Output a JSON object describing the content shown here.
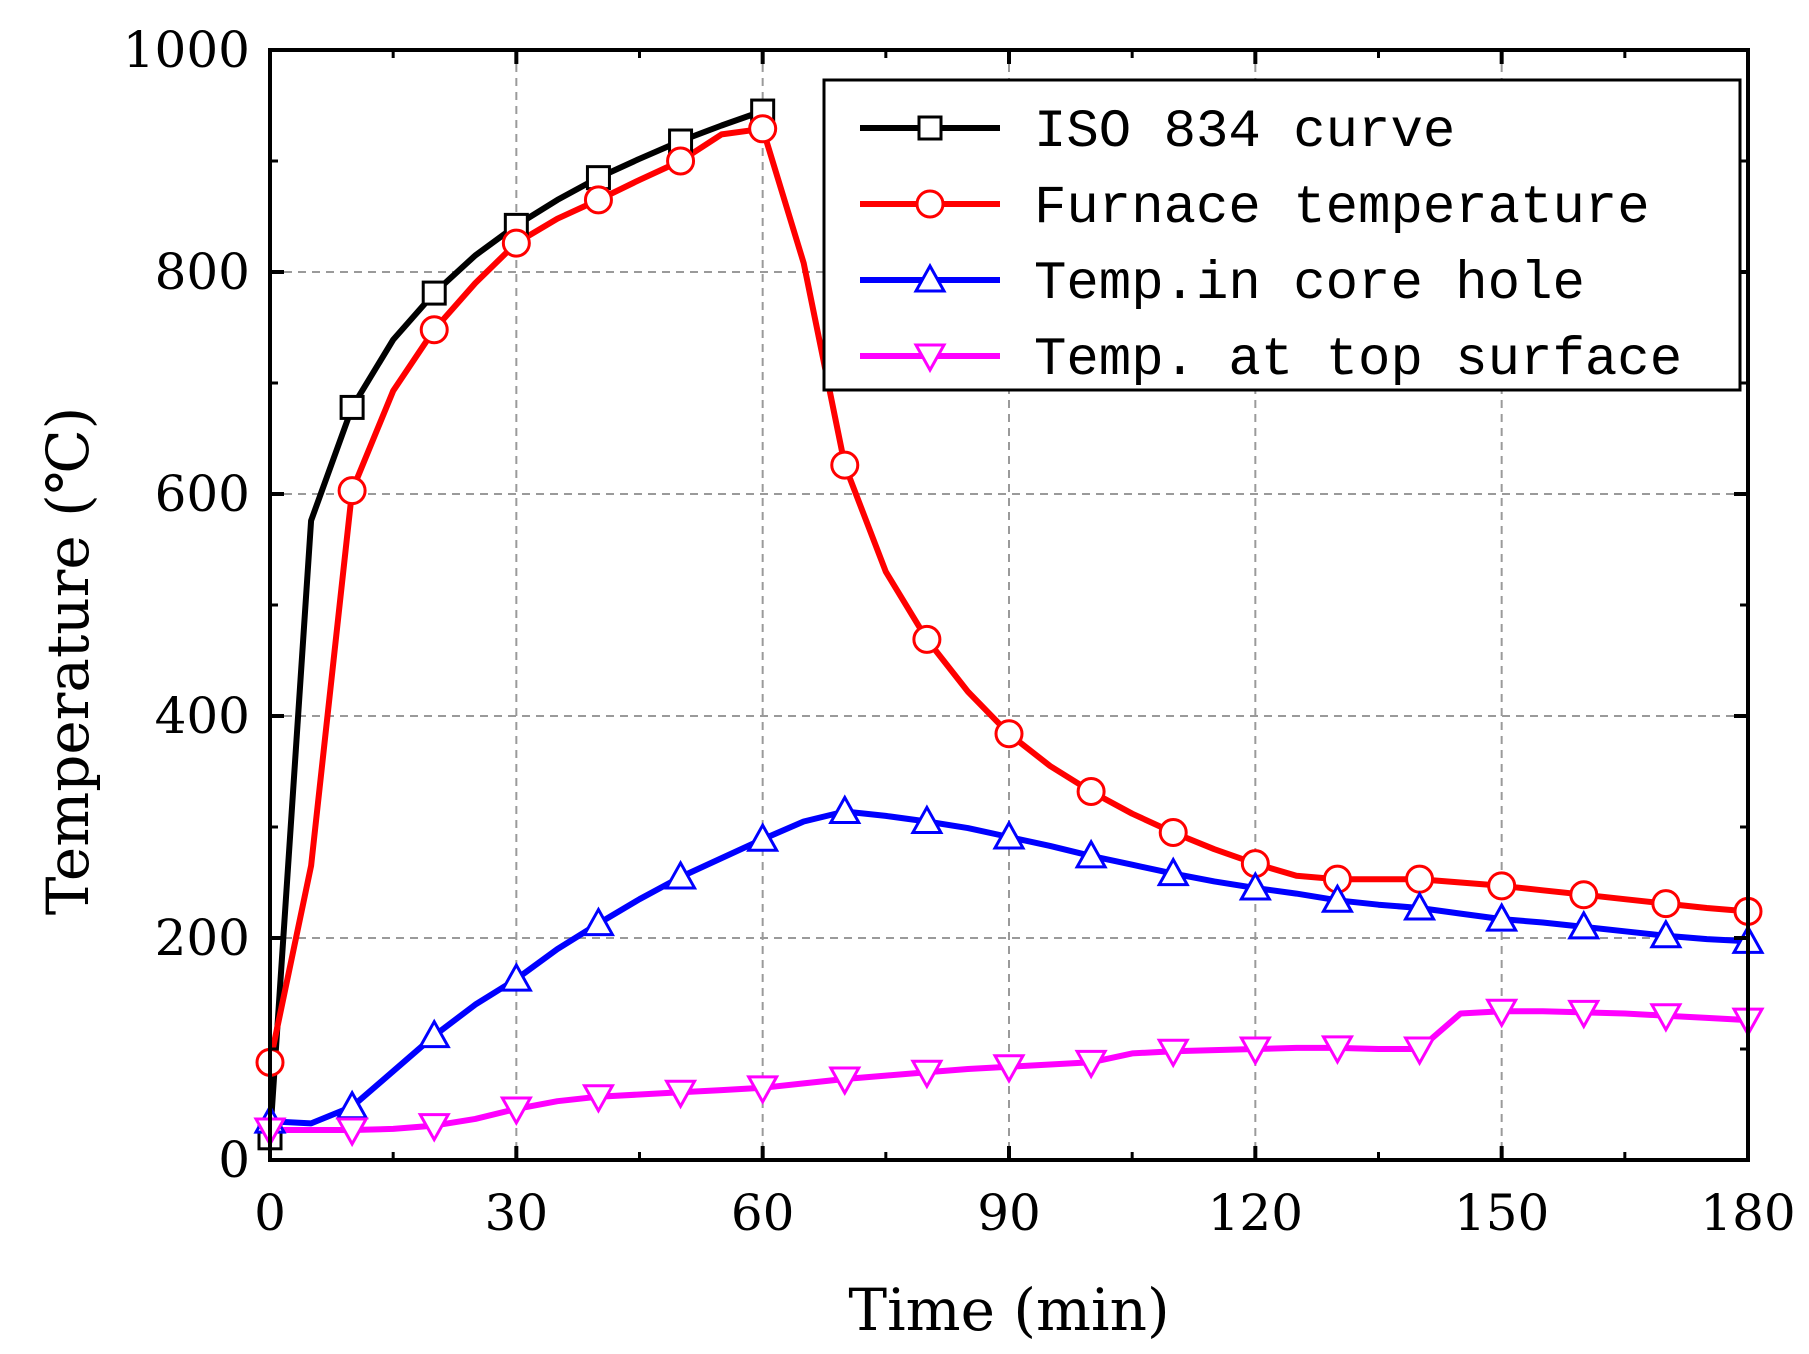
{
  "chart_data": {
    "type": "line",
    "title": "",
    "xlabel": "Time (min)",
    "ylabel": "Temperature (℃)",
    "xlim": [
      0,
      180
    ],
    "ylim": [
      0,
      1000
    ],
    "xticks": [
      0,
      30,
      60,
      90,
      120,
      150,
      180
    ],
    "yticks": [
      0,
      200,
      400,
      600,
      800,
      1000
    ],
    "grid": true,
    "legend_position": "top-right",
    "series": [
      {
        "name": "ISO 834 curve",
        "color": "#000000",
        "marker": "square",
        "x": [
          0,
          5,
          10,
          15,
          20,
          25,
          30,
          35,
          40,
          45,
          50,
          55,
          60
        ],
        "y": [
          20,
          576,
          678,
          739,
          781,
          815,
          842,
          865,
          885,
          902,
          918,
          932,
          945
        ],
        "marker_x": [
          0,
          10,
          20,
          30,
          40,
          50,
          60
        ],
        "marker_y": [
          20,
          678,
          781,
          842,
          885,
          918,
          945
        ]
      },
      {
        "name": "Furnace temperature",
        "color": "#ff0000",
        "marker": "circle",
        "x": [
          0,
          5,
          10,
          15,
          20,
          25,
          30,
          35,
          40,
          45,
          50,
          55,
          60,
          65,
          70,
          75,
          80,
          85,
          90,
          95,
          100,
          105,
          110,
          115,
          120,
          125,
          130,
          135,
          140,
          145,
          150,
          155,
          160,
          165,
          170,
          175,
          180
        ],
        "y": [
          88,
          265,
          603,
          693,
          748,
          790,
          826,
          848,
          865,
          883,
          900,
          924,
          929,
          808,
          626,
          530,
          469,
          422,
          384,
          355,
          332,
          312,
          295,
          280,
          267,
          256,
          253,
          253,
          253,
          250,
          247,
          243,
          239,
          235,
          231,
          227,
          224
        ],
        "marker_x": [
          0,
          10,
          20,
          30,
          40,
          50,
          60,
          70,
          80,
          90,
          100,
          110,
          120,
          130,
          140,
          150,
          160,
          170,
          180
        ],
        "marker_y": [
          88,
          603,
          748,
          826,
          865,
          900,
          929,
          626,
          469,
          384,
          332,
          295,
          267,
          253,
          253,
          247,
          239,
          231,
          224
        ]
      },
      {
        "name": "Temp.in core hole",
        "color": "#0000ff",
        "marker": "triangle-up",
        "x": [
          0,
          5,
          10,
          15,
          20,
          25,
          30,
          35,
          40,
          45,
          50,
          55,
          60,
          65,
          70,
          75,
          80,
          85,
          90,
          95,
          100,
          105,
          110,
          115,
          120,
          125,
          130,
          135,
          140,
          145,
          150,
          155,
          160,
          165,
          170,
          175,
          180
        ],
        "y": [
          35,
          33,
          48,
          80,
          112,
          140,
          163,
          190,
          213,
          235,
          255,
          272,
          289,
          305,
          314,
          310,
          305,
          299,
          291,
          283,
          274,
          266,
          258,
          251,
          245,
          240,
          234,
          230,
          227,
          222,
          217,
          214,
          210,
          206,
          202,
          199,
          197
        ],
        "marker_x": [
          0,
          10,
          20,
          30,
          40,
          50,
          60,
          70,
          80,
          90,
          100,
          110,
          120,
          130,
          140,
          150,
          160,
          170,
          180
        ],
        "marker_y": [
          35,
          48,
          112,
          163,
          213,
          255,
          289,
          314,
          305,
          291,
          274,
          258,
          245,
          234,
          227,
          217,
          210,
          202,
          197
        ]
      },
      {
        "name": "Temp. at top surface",
        "color": "#ff00ff",
        "marker": "triangle-down",
        "x": [
          0,
          5,
          10,
          15,
          20,
          25,
          30,
          35,
          40,
          45,
          50,
          55,
          60,
          65,
          70,
          75,
          80,
          85,
          90,
          95,
          100,
          105,
          110,
          115,
          120,
          125,
          130,
          135,
          140,
          145,
          150,
          155,
          160,
          165,
          170,
          175,
          180
        ],
        "y": [
          27,
          27,
          27,
          28,
          31,
          37,
          46,
          53,
          57,
          59,
          61,
          63,
          65,
          69,
          73,
          76,
          79,
          82,
          84,
          86,
          88,
          96,
          98,
          99,
          100,
          101,
          101,
          100,
          100,
          132,
          134,
          134,
          133,
          132,
          130,
          128,
          126
        ],
        "marker_x": [
          0,
          10,
          20,
          30,
          40,
          50,
          60,
          70,
          80,
          90,
          100,
          110,
          120,
          130,
          140,
          150,
          160,
          170,
          180
        ],
        "marker_y": [
          27,
          27,
          31,
          46,
          57,
          61,
          65,
          73,
          79,
          84,
          88,
          98,
          100,
          101,
          100,
          134,
          133,
          130,
          126
        ]
      }
    ]
  }
}
